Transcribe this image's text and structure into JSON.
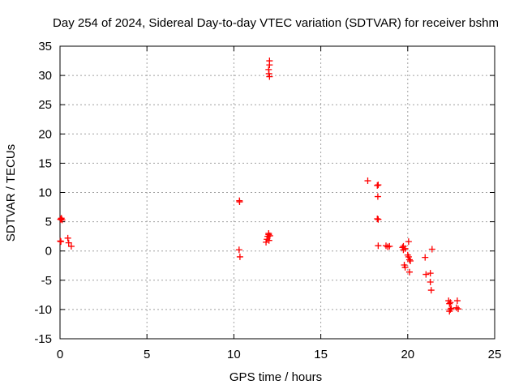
{
  "chart_data": {
    "type": "scatter",
    "title": "Day 254 of 2024, Sidereal Day-to-day VTEC variation (SDTVAR) for receiver bshm",
    "xlabel": "GPS time / hours",
    "ylabel": "SDTVAR / TECUs",
    "xlim": [
      0,
      25
    ],
    "ylim": [
      -15,
      35
    ],
    "xticks": [
      0,
      5,
      10,
      15,
      20,
      25
    ],
    "yticks": [
      -15,
      -10,
      -5,
      0,
      5,
      10,
      15,
      20,
      25,
      30,
      35
    ],
    "xtick_labels": [
      "0",
      "5",
      "10",
      "15",
      "20",
      "25"
    ],
    "ytick_labels": [
      "-15",
      "-10",
      "-5",
      "0",
      "5",
      "10",
      "15",
      "20",
      "25",
      "30",
      "35"
    ],
    "grid": true,
    "marker": "+",
    "color": "#ff0000",
    "series": [
      {
        "name": "SDTVAR",
        "x": [
          0.02,
          0.05,
          0.08,
          0.12,
          0.03,
          0.06,
          0.45,
          0.5,
          0.65,
          10.3,
          10.35,
          10.33,
          10.32,
          11.85,
          11.9,
          11.95,
          12.0,
          12.0,
          12.02,
          12.05,
          12.05,
          12.0,
          12.02,
          12.05,
          12.07,
          17.7,
          18.25,
          18.3,
          18.28,
          18.25,
          18.3,
          18.3,
          18.75,
          18.85,
          18.95,
          19.7,
          19.75,
          19.8,
          19.85,
          19.75,
          19.85,
          20.0,
          20.05,
          20.1,
          20.15,
          20.1,
          20.05,
          21.0,
          21.05,
          21.3,
          21.3,
          21.35,
          21.4,
          22.35,
          22.4,
          22.45,
          22.5,
          22.4,
          22.45,
          22.85,
          22.9,
          22.8
        ],
        "y": [
          1.7,
          1.6,
          5.6,
          5.3,
          5.4,
          5.5,
          2.2,
          1.4,
          0.8,
          0.2,
          -1.0,
          8.4,
          8.6,
          1.5,
          2.0,
          2.5,
          3.0,
          2.8,
          1.8,
          32.5,
          31.8,
          31.0,
          30.3,
          29.8,
          2.6,
          12.0,
          11.2,
          11.3,
          9.3,
          5.5,
          5.4,
          0.9,
          0.9,
          0.7,
          0.8,
          0.6,
          0.2,
          -2.4,
          -2.8,
          0.8,
          0.4,
          -0.7,
          -1.0,
          -1.5,
          -1.7,
          -3.6,
          1.6,
          -1.1,
          -4.0,
          -3.8,
          -5.3,
          -6.7,
          0.3,
          -8.5,
          -9.0,
          -8.8,
          -9.8,
          -10.3,
          -10.0,
          -8.5,
          -9.9,
          -9.7
        ]
      }
    ]
  }
}
